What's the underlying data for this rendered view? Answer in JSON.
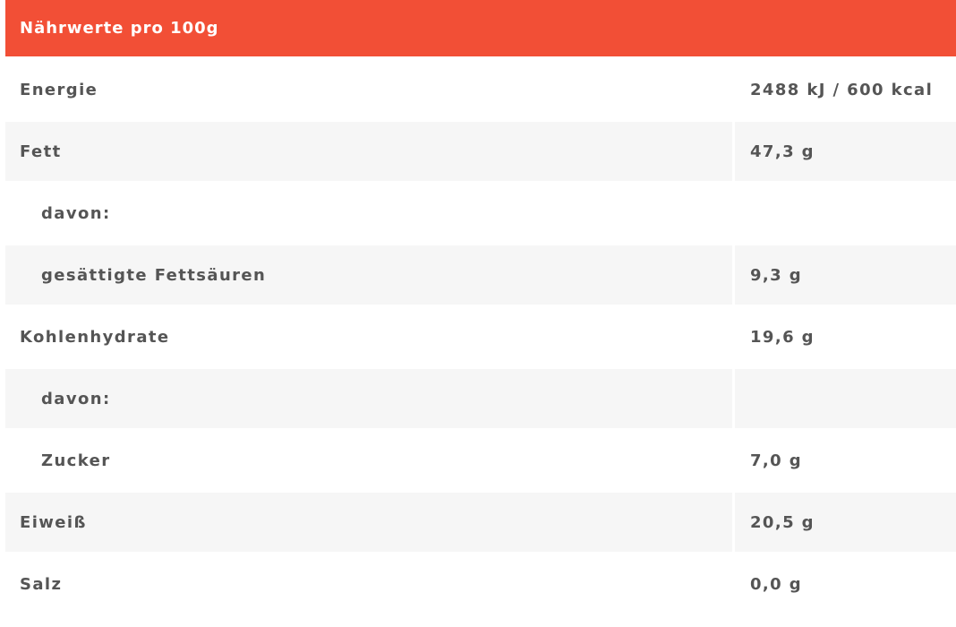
{
  "table": {
    "title": "Nährwerte pro 100g",
    "rows": [
      {
        "label": "Energie",
        "value": "2488 kJ / 600 kcal",
        "indent": false
      },
      {
        "label": "Fett",
        "value": "47,3 g",
        "indent": false
      },
      {
        "label": "davon:",
        "value": "",
        "indent": true
      },
      {
        "label": "gesättigte Fettsäuren",
        "value": "9,3 g",
        "indent": true
      },
      {
        "label": "Kohlenhydrate",
        "value": "19,6 g",
        "indent": false
      },
      {
        "label": "davon:",
        "value": "",
        "indent": true
      },
      {
        "label": "Zucker",
        "value": "7,0 g",
        "indent": true
      },
      {
        "label": "Eiweiß",
        "value": "20,5 g",
        "indent": false
      },
      {
        "label": "Salz",
        "value": "0,0 g",
        "indent": false
      }
    ],
    "colors": {
      "header": "#f24f36",
      "stripe": "#f6f6f6",
      "text": "#555555"
    }
  }
}
